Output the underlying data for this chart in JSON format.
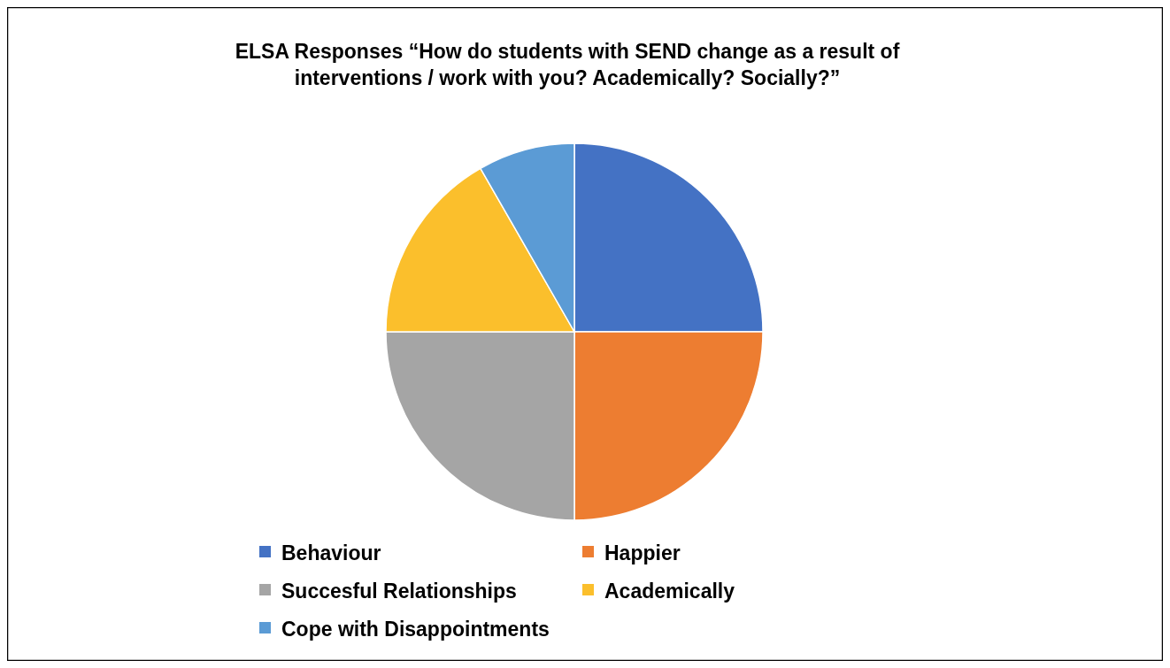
{
  "chart_data": {
    "type": "pie",
    "title": "ELSA Responses  “How do students with SEND change as a result of interventions / work with you? Academically? Socially?”",
    "categories": [
      "Behaviour",
      "Happier",
      "Succesful Relationships",
      "Academically",
      "Cope with Disappointments"
    ],
    "values": [
      25,
      25,
      25,
      16.7,
      8.3
    ],
    "colors": [
      "#4472c4",
      "#ed7d31",
      "#a5a5a5",
      "#fbbf2c",
      "#5b9bd5"
    ],
    "legend": "bottom"
  }
}
